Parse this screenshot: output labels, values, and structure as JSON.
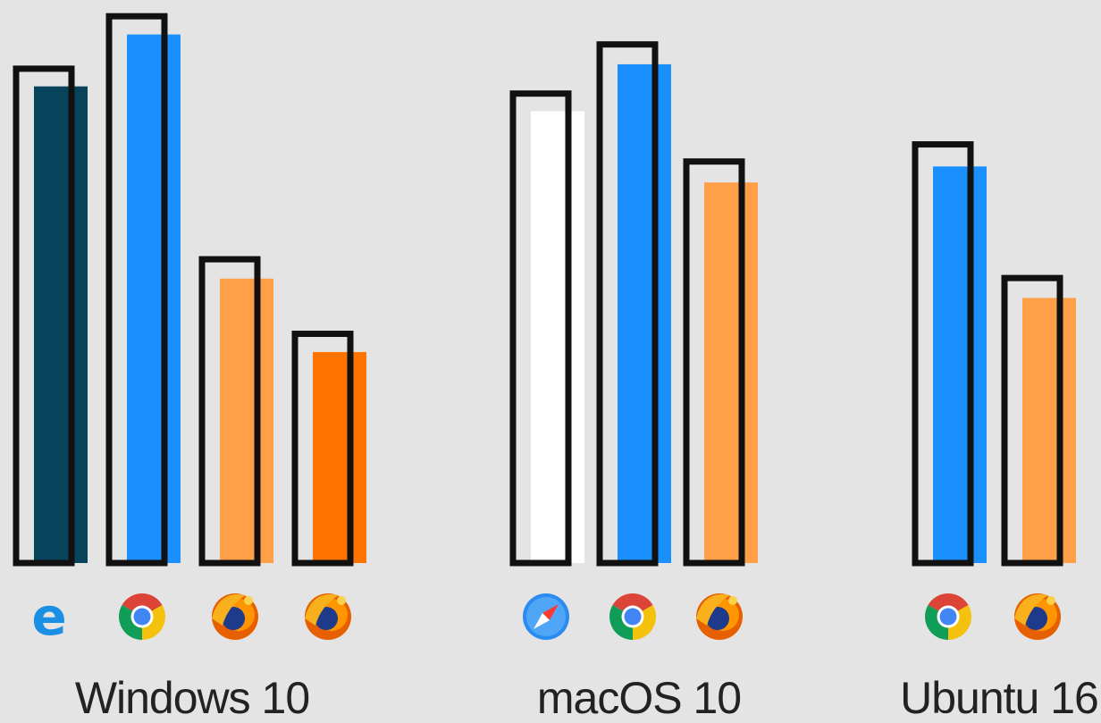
{
  "chart_data": {
    "type": "bar",
    "title": "",
    "xlabel": "",
    "ylabel": "",
    "ylim": [
      0,
      100
    ],
    "grid": false,
    "legend": "none",
    "groups": [
      {
        "label": "Windows 10",
        "bars": [
          {
            "browser": "edge-icon",
            "outline": 89.5,
            "value": 86.3,
            "color": "#07435a"
          },
          {
            "browser": "chrome-icon",
            "outline": 99.0,
            "value": 95.7,
            "color": "#1a90ff"
          },
          {
            "browser": "firefox-icon",
            "outline": 55.0,
            "value": 51.5,
            "color": "#ff9f47"
          },
          {
            "browser": "firefox-icon",
            "outline": 41.5,
            "value": 38.2,
            "color": "#ff7400"
          }
        ]
      },
      {
        "label": "macOS 10",
        "bars": [
          {
            "browser": "safari-icon",
            "outline": 85.0,
            "value": 81.8,
            "color": "#ffffff"
          },
          {
            "browser": "chrome-icon",
            "outline": 93.9,
            "value": 90.3,
            "color": "#1a90ff"
          },
          {
            "browser": "firefox-icon",
            "outline": 72.7,
            "value": 68.9,
            "color": "#ff9f47"
          }
        ]
      },
      {
        "label": "Ubuntu 16",
        "bars": [
          {
            "browser": "chrome-icon",
            "outline": 75.8,
            "value": 71.8,
            "color": "#1a90ff"
          },
          {
            "browser": "firefox-icon",
            "outline": 51.6,
            "value": 48.0,
            "color": "#ff9f47"
          }
        ]
      }
    ]
  }
}
